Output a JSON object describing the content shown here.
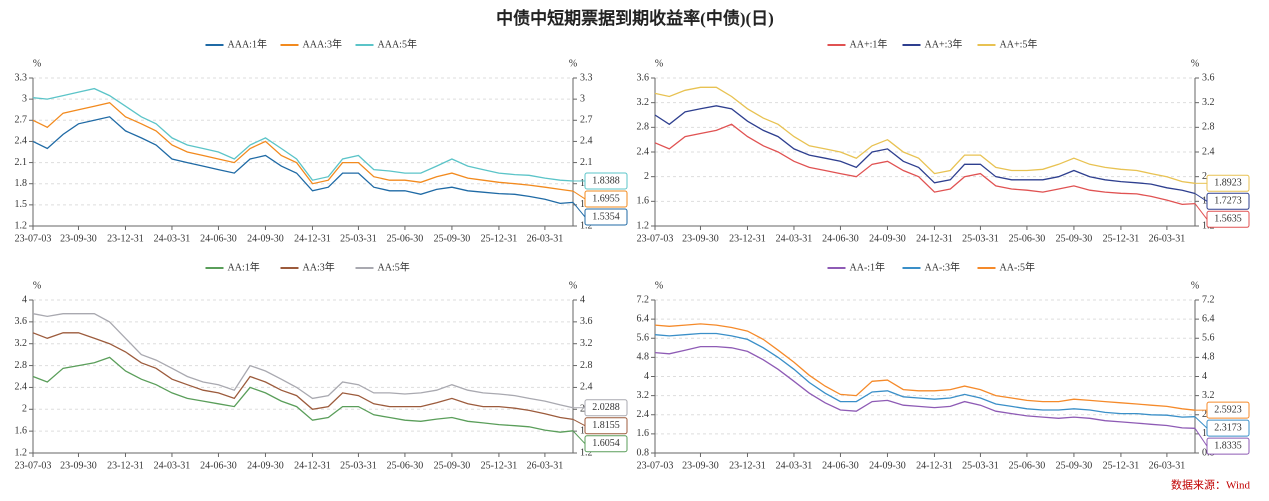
{
  "title": "中债中短期票据到期收益率(中债)(日)",
  "source": "数据来源：Wind",
  "chart_data": [
    {
      "type": "line",
      "ylabel": "%",
      "xlim": [
        "23-07-03",
        "26-05-25"
      ],
      "ylim": [
        1.2,
        3.3
      ],
      "yticks": [
        1.2,
        1.5,
        1.8,
        2.1,
        2.4,
        2.7,
        3,
        3.3
      ],
      "grid": true,
      "xticks": [
        "23-07-03",
        "23-09-30",
        "23-12-31",
        "24-03-31",
        "24-06-30",
        "24-09-30",
        "24-12-31",
        "25-03-31",
        "25-06-30",
        "25-09-30",
        "25-12-31",
        "26-03-31"
      ],
      "x": [
        "23-07-03",
        "23-07-31",
        "23-08-31",
        "23-09-30",
        "23-10-31",
        "23-11-30",
        "23-12-31",
        "24-01-31",
        "24-02-29",
        "24-03-31",
        "24-04-30",
        "24-05-31",
        "24-06-30",
        "24-07-31",
        "24-08-31",
        "24-09-30",
        "24-10-31",
        "24-11-30",
        "24-12-31",
        "25-01-31",
        "25-02-28",
        "25-03-31",
        "25-04-30",
        "25-05-31",
        "25-06-30",
        "25-07-31",
        "25-08-31",
        "25-09-30",
        "25-10-31",
        "25-11-30",
        "25-12-31",
        "26-01-31",
        "26-02-28",
        "26-03-31",
        "26-04-30",
        "26-05-25"
      ],
      "series": [
        {
          "name": "AAA:1年",
          "color": "#1f6aa5",
          "values": [
            2.4,
            2.3,
            2.5,
            2.65,
            2.7,
            2.75,
            2.55,
            2.45,
            2.35,
            2.15,
            2.1,
            2.05,
            2.0,
            1.95,
            2.15,
            2.2,
            2.05,
            1.95,
            1.7,
            1.75,
            1.95,
            1.95,
            1.75,
            1.7,
            1.7,
            1.65,
            1.72,
            1.75,
            1.7,
            1.68,
            1.66,
            1.65,
            1.62,
            1.58,
            1.52,
            1.5354
          ]
        },
        {
          "name": "AAA:3年",
          "color": "#f28a1e",
          "values": [
            2.7,
            2.6,
            2.8,
            2.85,
            2.9,
            2.95,
            2.75,
            2.65,
            2.55,
            2.35,
            2.25,
            2.2,
            2.15,
            2.1,
            2.3,
            2.4,
            2.2,
            2.1,
            1.8,
            1.85,
            2.1,
            2.1,
            1.9,
            1.85,
            1.85,
            1.82,
            1.9,
            1.95,
            1.88,
            1.85,
            1.82,
            1.8,
            1.78,
            1.75,
            1.72,
            1.6955
          ]
        },
        {
          "name": "AAA:5年",
          "color": "#5bc4c8",
          "values": [
            3.02,
            3.0,
            3.05,
            3.1,
            3.15,
            3.05,
            2.9,
            2.75,
            2.65,
            2.45,
            2.35,
            2.3,
            2.25,
            2.15,
            2.35,
            2.45,
            2.3,
            2.15,
            1.85,
            1.9,
            2.15,
            2.2,
            2.0,
            1.98,
            1.95,
            1.95,
            2.05,
            2.15,
            2.05,
            2.0,
            1.95,
            1.93,
            1.92,
            1.88,
            1.85,
            1.8388
          ]
        }
      ]
    },
    {
      "type": "line",
      "ylabel": "%",
      "xlim": [
        "23-07-03",
        "26-05-25"
      ],
      "ylim": [
        1.2,
        3.6
      ],
      "yticks": [
        1.2,
        1.6,
        2,
        2.4,
        2.8,
        3.2,
        3.6
      ],
      "grid": true,
      "xticks": [
        "23-07-03",
        "23-09-30",
        "23-12-31",
        "24-03-31",
        "24-06-30",
        "24-09-30",
        "24-12-31",
        "25-03-31",
        "25-06-30",
        "25-09-30",
        "25-12-31",
        "26-03-31"
      ],
      "x": [
        "23-07-03",
        "23-07-31",
        "23-08-31",
        "23-09-30",
        "23-10-31",
        "23-11-30",
        "23-12-31",
        "24-01-31",
        "24-02-29",
        "24-03-31",
        "24-04-30",
        "24-05-31",
        "24-06-30",
        "24-07-31",
        "24-08-31",
        "24-09-30",
        "24-10-31",
        "24-11-30",
        "24-12-31",
        "25-01-31",
        "25-02-28",
        "25-03-31",
        "25-04-30",
        "25-05-31",
        "25-06-30",
        "25-07-31",
        "25-08-31",
        "25-09-30",
        "25-10-31",
        "25-11-30",
        "25-12-31",
        "26-01-31",
        "26-02-28",
        "26-03-31",
        "26-04-30",
        "26-05-25"
      ],
      "series": [
        {
          "name": "AA+:1年",
          "color": "#e05252",
          "values": [
            2.55,
            2.45,
            2.65,
            2.7,
            2.75,
            2.85,
            2.65,
            2.5,
            2.4,
            2.25,
            2.15,
            2.1,
            2.05,
            2.0,
            2.2,
            2.25,
            2.1,
            2.0,
            1.75,
            1.8,
            2.0,
            2.05,
            1.85,
            1.8,
            1.78,
            1.75,
            1.8,
            1.85,
            1.78,
            1.75,
            1.73,
            1.72,
            1.68,
            1.62,
            1.55,
            1.5635
          ]
        },
        {
          "name": "AA+:3年",
          "color": "#2e3f8f",
          "values": [
            3.0,
            2.85,
            3.05,
            3.1,
            3.15,
            3.1,
            2.9,
            2.75,
            2.65,
            2.45,
            2.35,
            2.3,
            2.25,
            2.15,
            2.4,
            2.45,
            2.25,
            2.15,
            1.9,
            1.95,
            2.2,
            2.2,
            2.0,
            1.95,
            1.95,
            1.95,
            2.0,
            2.1,
            2.0,
            1.95,
            1.92,
            1.9,
            1.88,
            1.82,
            1.78,
            1.7273
          ]
        },
        {
          "name": "AA+:5年",
          "color": "#e8c252",
          "values": [
            3.35,
            3.3,
            3.4,
            3.45,
            3.45,
            3.3,
            3.1,
            2.95,
            2.85,
            2.65,
            2.5,
            2.45,
            2.4,
            2.3,
            2.5,
            2.6,
            2.4,
            2.3,
            2.05,
            2.1,
            2.35,
            2.35,
            2.15,
            2.1,
            2.1,
            2.12,
            2.2,
            2.3,
            2.2,
            2.15,
            2.12,
            2.1,
            2.05,
            2.0,
            1.92,
            1.8923
          ]
        }
      ]
    },
    {
      "type": "line",
      "ylabel": "%",
      "xlim": [
        "23-07-03",
        "26-05-25"
      ],
      "ylim": [
        1.2,
        4
      ],
      "yticks": [
        1.2,
        1.6,
        2,
        2.4,
        2.8,
        3.2,
        3.6,
        4
      ],
      "grid": true,
      "xticks": [
        "23-07-03",
        "23-09-30",
        "23-12-31",
        "24-03-31",
        "24-06-30",
        "24-09-30",
        "24-12-31",
        "25-03-31",
        "25-06-30",
        "25-09-30",
        "25-12-31",
        "26-03-31"
      ],
      "x": [
        "23-07-03",
        "23-07-31",
        "23-08-31",
        "23-09-30",
        "23-10-31",
        "23-11-30",
        "23-12-31",
        "24-01-31",
        "24-02-29",
        "24-03-31",
        "24-04-30",
        "24-05-31",
        "24-06-30",
        "24-07-31",
        "24-08-31",
        "24-09-30",
        "24-10-31",
        "24-11-30",
        "24-12-31",
        "25-01-31",
        "25-02-28",
        "25-03-31",
        "25-04-30",
        "25-05-31",
        "25-06-30",
        "25-07-31",
        "25-08-31",
        "25-09-30",
        "25-10-31",
        "25-11-30",
        "25-12-31",
        "26-01-31",
        "26-02-28",
        "26-03-31",
        "26-04-30",
        "26-05-25"
      ],
      "series": [
        {
          "name": "AA:1年",
          "color": "#5a9e5a",
          "values": [
            2.6,
            2.5,
            2.75,
            2.8,
            2.85,
            2.95,
            2.7,
            2.55,
            2.45,
            2.3,
            2.2,
            2.15,
            2.1,
            2.05,
            2.4,
            2.3,
            2.15,
            2.05,
            1.8,
            1.85,
            2.05,
            2.05,
            1.9,
            1.85,
            1.8,
            1.78,
            1.82,
            1.85,
            1.78,
            1.75,
            1.72,
            1.7,
            1.68,
            1.62,
            1.58,
            1.6054
          ]
        },
        {
          "name": "AA:3年",
          "color": "#9c5b3c",
          "values": [
            3.4,
            3.3,
            3.4,
            3.4,
            3.3,
            3.2,
            3.05,
            2.85,
            2.75,
            2.55,
            2.45,
            2.35,
            2.3,
            2.2,
            2.6,
            2.5,
            2.35,
            2.25,
            2.0,
            2.05,
            2.3,
            2.25,
            2.1,
            2.05,
            2.05,
            2.05,
            2.12,
            2.2,
            2.1,
            2.05,
            2.05,
            2.02,
            1.98,
            1.92,
            1.85,
            1.8155
          ]
        },
        {
          "name": "AA:5年",
          "color": "#a9a9b0",
          "values": [
            3.75,
            3.7,
            3.75,
            3.75,
            3.75,
            3.6,
            3.3,
            3.0,
            2.9,
            2.75,
            2.6,
            2.5,
            2.45,
            2.35,
            2.8,
            2.7,
            2.55,
            2.4,
            2.2,
            2.25,
            2.5,
            2.45,
            2.3,
            2.3,
            2.28,
            2.3,
            2.35,
            2.45,
            2.35,
            2.3,
            2.28,
            2.25,
            2.2,
            2.15,
            2.08,
            2.0288
          ]
        }
      ]
    },
    {
      "type": "line",
      "ylabel": "%",
      "xlim": [
        "23-07-03",
        "26-05-25"
      ],
      "ylim": [
        0.8,
        7.2
      ],
      "yticks": [
        0.8,
        1.6,
        2.4,
        3.2,
        4,
        4.8,
        5.6,
        6.4,
        7.2
      ],
      "grid": true,
      "xticks": [
        "23-07-03",
        "23-09-30",
        "23-12-31",
        "24-03-31",
        "24-06-30",
        "24-09-30",
        "24-12-31",
        "25-03-31",
        "25-06-30",
        "25-09-30",
        "25-12-31",
        "26-03-31"
      ],
      "x": [
        "23-07-03",
        "23-07-31",
        "23-08-31",
        "23-09-30",
        "23-10-31",
        "23-11-30",
        "23-12-31",
        "24-01-31",
        "24-02-29",
        "24-03-31",
        "24-04-30",
        "24-05-31",
        "24-06-30",
        "24-07-31",
        "24-08-31",
        "24-09-30",
        "24-10-31",
        "24-11-30",
        "24-12-31",
        "25-01-31",
        "25-02-28",
        "25-03-31",
        "25-04-30",
        "25-05-31",
        "25-06-30",
        "25-07-31",
        "25-08-31",
        "25-09-30",
        "25-10-31",
        "25-11-30",
        "25-12-31",
        "26-01-31",
        "26-02-28",
        "26-03-31",
        "26-04-30",
        "26-05-25"
      ],
      "series": [
        {
          "name": "AA-:1年",
          "color": "#8e5bb5",
          "values": [
            5.0,
            4.95,
            5.1,
            5.25,
            5.25,
            5.2,
            5.05,
            4.7,
            4.3,
            3.8,
            3.3,
            2.9,
            2.6,
            2.55,
            2.95,
            3.0,
            2.8,
            2.75,
            2.7,
            2.75,
            2.95,
            2.8,
            2.55,
            2.45,
            2.35,
            2.3,
            2.25,
            2.3,
            2.25,
            2.15,
            2.1,
            2.05,
            2.0,
            1.95,
            1.85,
            1.8335
          ]
        },
        {
          "name": "AA-:3年",
          "color": "#3a8fc8",
          "values": [
            5.75,
            5.7,
            5.75,
            5.8,
            5.8,
            5.7,
            5.55,
            5.2,
            4.8,
            4.3,
            3.75,
            3.3,
            2.95,
            2.95,
            3.35,
            3.4,
            3.15,
            3.1,
            3.05,
            3.1,
            3.25,
            3.1,
            2.85,
            2.75,
            2.65,
            2.6,
            2.6,
            2.65,
            2.6,
            2.5,
            2.45,
            2.45,
            2.4,
            2.38,
            2.3,
            2.3173
          ]
        },
        {
          "name": "AA-:5年",
          "color": "#f58a2a",
          "values": [
            6.15,
            6.1,
            6.15,
            6.2,
            6.15,
            6.05,
            5.9,
            5.55,
            5.1,
            4.6,
            4.05,
            3.6,
            3.25,
            3.2,
            3.8,
            3.85,
            3.45,
            3.4,
            3.4,
            3.45,
            3.6,
            3.45,
            3.2,
            3.1,
            3.0,
            2.95,
            2.95,
            3.05,
            3.0,
            2.95,
            2.9,
            2.85,
            2.8,
            2.75,
            2.65,
            2.5923
          ]
        }
      ]
    }
  ]
}
